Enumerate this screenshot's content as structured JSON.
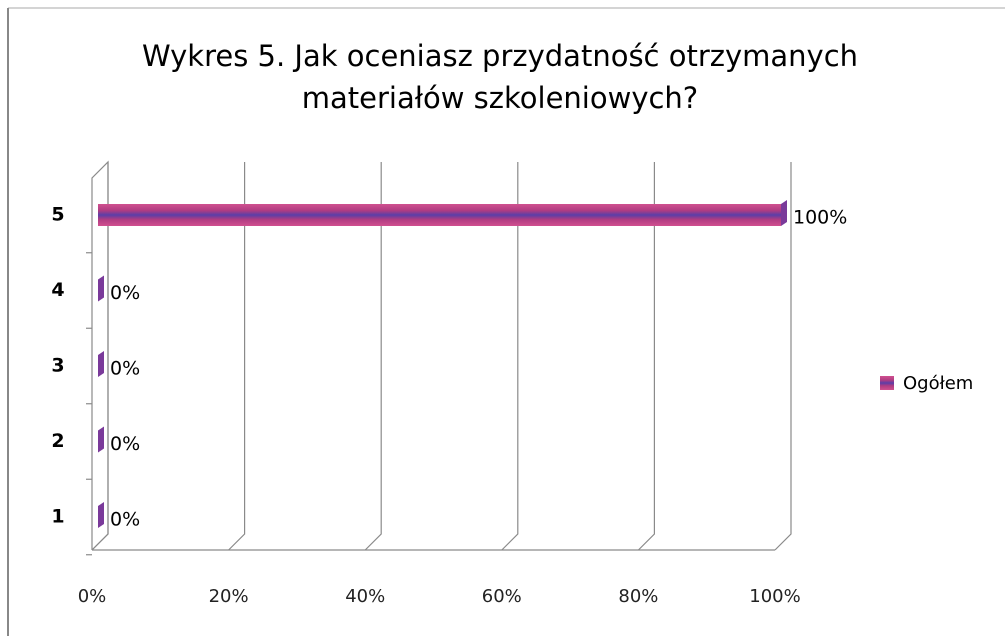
{
  "chart_data": {
    "type": "bar",
    "orientation": "horizontal",
    "title": "Wykres 5. Jak oceniasz przydatność otrzymanych materiałów szkoleniowych?",
    "categories": [
      "1",
      "2",
      "3",
      "4",
      "5"
    ],
    "series": [
      {
        "name": "Ogółem",
        "color": "#b03c82",
        "values": [
          0,
          0,
          0,
          0,
          100
        ],
        "value_labels": [
          "0%",
          "0%",
          "0%",
          "0%",
          "100%"
        ]
      }
    ],
    "xlim": [
      0,
      100
    ],
    "xticks": [
      {
        "value": 0,
        "label": "0%"
      },
      {
        "value": 20,
        "label": "20%"
      },
      {
        "value": 40,
        "label": "40%"
      },
      {
        "value": 60,
        "label": "60%"
      },
      {
        "value": 80,
        "label": "80%"
      },
      {
        "value": 100,
        "label": "100%"
      }
    ],
    "grid": true,
    "legend": "right"
  }
}
